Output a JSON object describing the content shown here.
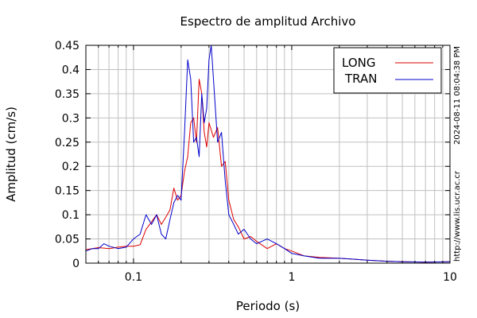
{
  "chart_data": {
    "type": "line",
    "title": "Espectro de amplitud Archivo",
    "xlabel": "Periodo (s)",
    "ylabel": "Amplitud (cm/s)",
    "x_scale": "log",
    "xlim": [
      0.05,
      10
    ],
    "ylim": [
      0,
      0.45
    ],
    "x_tick_labels": [
      "0.1",
      "1",
      "10"
    ],
    "x_tick_values": [
      0.1,
      1,
      10
    ],
    "y_tick_labels": [
      "0",
      "0.05",
      "0.1",
      "0.15",
      "0.2",
      "0.25",
      "0.3",
      "0.35",
      "0.4",
      "0.45"
    ],
    "y_tick_values": [
      0,
      0.05,
      0.1,
      0.15,
      0.2,
      0.25,
      0.3,
      0.35,
      0.4,
      0.45
    ],
    "grid": true,
    "legend_position": "top-right",
    "series": [
      {
        "name": "LONG",
        "color": "#dd0000",
        "x": [
          0.05,
          0.06,
          0.07,
          0.08,
          0.09,
          0.1,
          0.11,
          0.12,
          0.13,
          0.14,
          0.15,
          0.16,
          0.17,
          0.18,
          0.19,
          0.2,
          0.21,
          0.22,
          0.23,
          0.24,
          0.25,
          0.26,
          0.27,
          0.28,
          0.29,
          0.3,
          0.32,
          0.34,
          0.36,
          0.38,
          0.4,
          0.43,
          0.46,
          0.5,
          0.55,
          0.6,
          0.7,
          0.8,
          0.9,
          1.0,
          1.2,
          1.5,
          2.0,
          2.5,
          3.0,
          4.0,
          5.0,
          7.0,
          10.0
        ],
        "y": [
          0.028,
          0.032,
          0.03,
          0.033,
          0.035,
          0.035,
          0.038,
          0.07,
          0.085,
          0.1,
          0.08,
          0.095,
          0.11,
          0.155,
          0.13,
          0.14,
          0.19,
          0.22,
          0.29,
          0.3,
          0.25,
          0.38,
          0.35,
          0.27,
          0.24,
          0.29,
          0.26,
          0.28,
          0.2,
          0.21,
          0.13,
          0.09,
          0.075,
          0.05,
          0.055,
          0.045,
          0.03,
          0.04,
          0.03,
          0.025,
          0.015,
          0.012,
          0.01,
          0.008,
          0.006,
          0.004,
          0.003,
          0.002,
          0.003
        ]
      },
      {
        "name": "TRAN",
        "color": "#0000cc",
        "x": [
          0.05,
          0.055,
          0.06,
          0.065,
          0.07,
          0.08,
          0.09,
          0.1,
          0.11,
          0.12,
          0.13,
          0.14,
          0.15,
          0.16,
          0.17,
          0.18,
          0.19,
          0.2,
          0.21,
          0.22,
          0.23,
          0.24,
          0.25,
          0.26,
          0.27,
          0.28,
          0.29,
          0.3,
          0.31,
          0.32,
          0.34,
          0.36,
          0.38,
          0.4,
          0.43,
          0.46,
          0.5,
          0.55,
          0.6,
          0.7,
          0.8,
          0.9,
          1.0,
          1.2,
          1.5,
          2.0,
          2.5,
          3.0,
          4.0,
          5.0,
          7.0,
          10.0
        ],
        "y": [
          0.025,
          0.03,
          0.03,
          0.04,
          0.035,
          0.03,
          0.033,
          0.05,
          0.06,
          0.1,
          0.08,
          0.1,
          0.06,
          0.05,
          0.09,
          0.125,
          0.14,
          0.13,
          0.27,
          0.42,
          0.38,
          0.25,
          0.26,
          0.22,
          0.35,
          0.29,
          0.32,
          0.42,
          0.45,
          0.38,
          0.25,
          0.27,
          0.17,
          0.1,
          0.08,
          0.06,
          0.07,
          0.05,
          0.04,
          0.05,
          0.04,
          0.03,
          0.02,
          0.015,
          0.01,
          0.01,
          0.008,
          0.006,
          0.004,
          0.003,
          0.002,
          0.003
        ]
      }
    ],
    "side_text": {
      "timestamp": "2024-08-11 08:04:38 PM",
      "url": "http://www.lis.ucr.ac.cr"
    }
  }
}
